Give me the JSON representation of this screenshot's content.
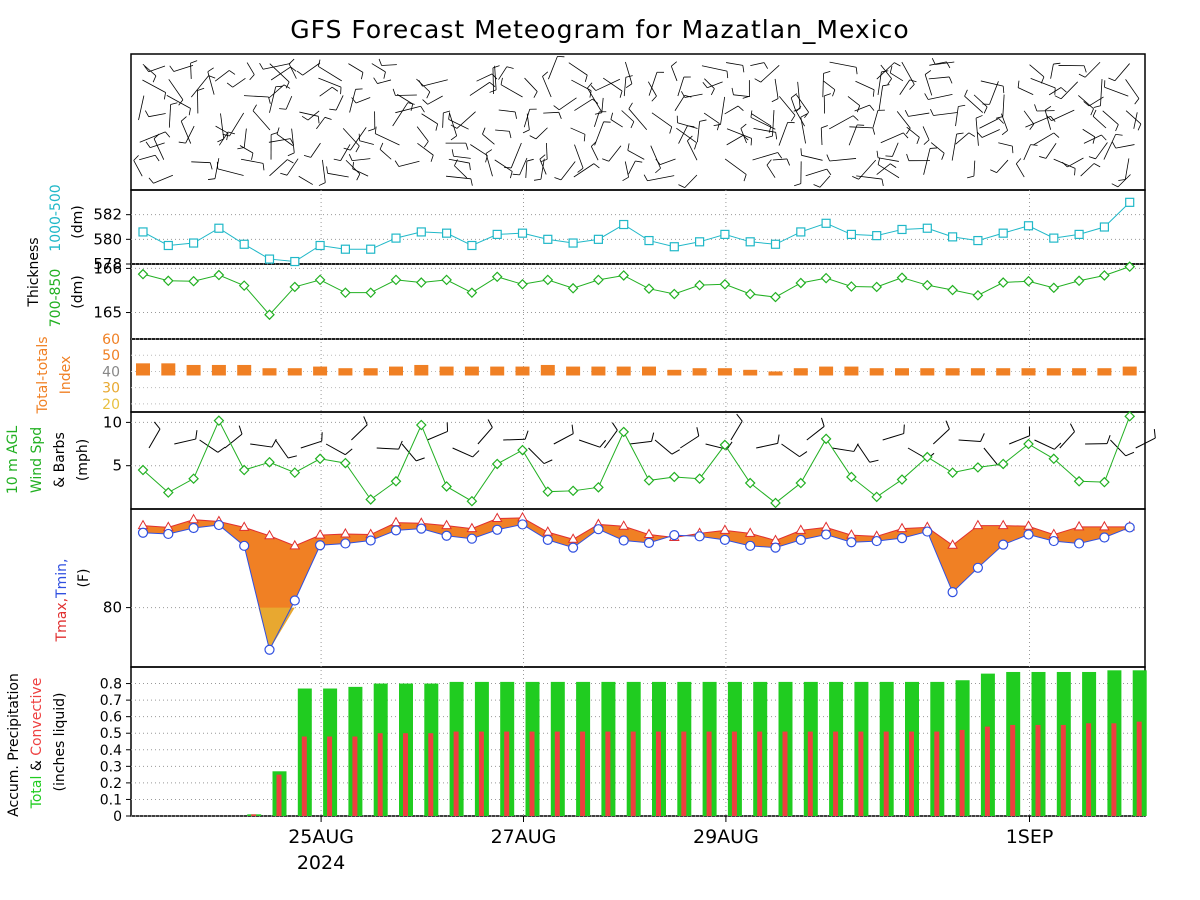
{
  "title": "GFS Forecast Meteogram for Mazatlan_Mexico",
  "colors": {
    "thickness1000": "#20b8c8",
    "thickness850": "#22b022",
    "tt_bar": "#f08024",
    "tt_label": "#f08024",
    "wind": "#22b022",
    "tmax": "#e03030",
    "tmin": "#3050e0",
    "fill_main": "#f08024",
    "fill_low": "#e8a830",
    "precip_total": "#20cc20",
    "precip_conv": "#ee4040"
  },
  "x_labels": [
    {
      "text": "25AUG",
      "step": 7
    },
    {
      "text": "27AUG",
      "step": 15
    },
    {
      "text": "29AUG",
      "step": 23
    },
    {
      "text": "1SEP",
      "step": 35
    }
  ],
  "year_label": "2024",
  "chart_data": [
    {
      "type": "line",
      "name": "thickness",
      "ylabel_lines": [
        "Thickness",
        "1000-500",
        "(dm)"
      ],
      "ylim": [
        578,
        584
      ],
      "ticks": [
        "582",
        "580",
        "578"
      ],
      "values": [
        580.6,
        579.5,
        579.7,
        580.9,
        579.6,
        578.4,
        578.2,
        579.5,
        579.2,
        579.2,
        580.1,
        580.6,
        580.5,
        579.5,
        580.4,
        580.5,
        580.0,
        579.7,
        580.0,
        581.2,
        579.9,
        579.4,
        579.8,
        580.4,
        579.8,
        579.6,
        580.6,
        581.3,
        580.4,
        580.3,
        580.8,
        580.9,
        580.2,
        579.9,
        580.5,
        581.1,
        580.1,
        580.4,
        581.0,
        583.0
      ]
    },
    {
      "type": "line",
      "name": "thickness_700_850",
      "ylabel_lines": [
        "700-850",
        "(dm)"
      ],
      "ylim": [
        164.4,
        166.1
      ],
      "ticks": [
        "166",
        "165"
      ],
      "values": [
        165.87,
        165.72,
        165.71,
        165.85,
        165.61,
        164.95,
        165.58,
        165.74,
        165.45,
        165.45,
        165.74,
        165.68,
        165.74,
        165.45,
        165.81,
        165.64,
        165.74,
        165.55,
        165.74,
        165.84,
        165.54,
        165.42,
        165.62,
        165.64,
        165.42,
        165.35,
        165.67,
        165.78,
        165.59,
        165.58,
        165.79,
        165.62,
        165.51,
        165.39,
        165.68,
        165.71,
        165.56,
        165.72,
        165.84,
        166.04
      ]
    },
    {
      "type": "bar",
      "name": "total_totals",
      "ylabel_lines": [
        "Total-totals",
        "Index"
      ],
      "ylim": [
        15,
        60
      ],
      "ticks": [
        "60",
        "50",
        "40",
        "30",
        "20"
      ],
      "values": [
        45,
        45,
        44,
        44,
        44,
        42,
        42,
        43,
        42,
        42,
        43,
        44,
        43,
        43,
        43,
        43,
        44,
        43,
        43,
        43,
        43,
        41,
        42,
        42,
        41,
        40,
        42,
        43,
        43,
        42,
        42,
        42,
        42,
        42,
        42,
        42,
        42,
        42,
        42,
        43
      ]
    },
    {
      "type": "line",
      "name": "wind_speed",
      "ylabel_lines": [
        "10 m AGL",
        "Wind Spd",
        "& Barbs",
        "(mph)"
      ],
      "ylim": [
        0,
        11.2
      ],
      "ticks": [
        "10",
        "5"
      ],
      "values": [
        4.5,
        1.9,
        3.5,
        10.2,
        4.5,
        5.4,
        4.2,
        5.8,
        5.3,
        1.1,
        3.2,
        9.7,
        2.6,
        0.9,
        5.2,
        6.8,
        2.0,
        2.1,
        2.5,
        8.9,
        3.3,
        3.7,
        3.5,
        7.4,
        3.0,
        0.7,
        3.0,
        8.1,
        3.7,
        1.4,
        3.4,
        6.0,
        4.2,
        4.8,
        5.2,
        7.5,
        5.8,
        3.2,
        3.1,
        10.7
      ]
    },
    {
      "type": "area",
      "name": "temperature",
      "ylabel_lines": [
        "Tmax,Tmin,",
        "(F)"
      ],
      "ylim": [
        70,
        96.6
      ],
      "ticks": [
        "80"
      ],
      "series": [
        {
          "name": "Tmax",
          "values": [
            93.8,
            93.5,
            94.8,
            94.5,
            93.5,
            92.1,
            90.4,
            92.2,
            92.4,
            92.3,
            94.3,
            94.2,
            93.8,
            93.3,
            95.0,
            95.1,
            92.7,
            91.5,
            94.0,
            93.7,
            92.3,
            91.8,
            92.5,
            93.0,
            92.5,
            91.3,
            93.0,
            93.5,
            92.2,
            92.0,
            93.3,
            93.5,
            90.5,
            93.8,
            93.8,
            93.7,
            92.3,
            93.6,
            93.6,
            93.6
          ]
        },
        {
          "name": "Tmin",
          "values": [
            92.6,
            92.4,
            93.4,
            93.9,
            90.4,
            72.9,
            81.2,
            90.5,
            90.8,
            91.3,
            93.0,
            93.3,
            92.1,
            91.6,
            93.1,
            94.0,
            91.4,
            90.1,
            93.2,
            91.3,
            90.9,
            92.2,
            92.0,
            91.4,
            90.4,
            90.1,
            91.4,
            92.3,
            91.0,
            91.2,
            91.7,
            92.8,
            82.6,
            86.7,
            90.6,
            92.3,
            91.2,
            90.8,
            91.8,
            93.5
          ]
        }
      ]
    },
    {
      "type": "bar",
      "name": "precipitation",
      "ylabel_lines": [
        "Accum. Precipitation",
        "Total & Convective",
        "(inches liquid)"
      ],
      "ylim": [
        0,
        0.9
      ],
      "ticks": [
        "0.8",
        "0.7",
        "0.6",
        "0.5",
        "0.4",
        "0.3",
        "0.2",
        "0.1",
        "0"
      ],
      "series": [
        {
          "name": "Total",
          "values": [
            0,
            0,
            0,
            0,
            0.01,
            0.27,
            0.77,
            0.77,
            0.78,
            0.8,
            0.8,
            0.8,
            0.81,
            0.81,
            0.81,
            0.81,
            0.81,
            0.81,
            0.81,
            0.81,
            0.81,
            0.81,
            0.81,
            0.81,
            0.81,
            0.81,
            0.81,
            0.81,
            0.81,
            0.81,
            0.81,
            0.81,
            0.82,
            0.86,
            0.87,
            0.87,
            0.87,
            0.87,
            0.88,
            0.88
          ]
        },
        {
          "name": "Convective",
          "values": [
            0,
            0,
            0,
            0,
            0.01,
            0.25,
            0.48,
            0.48,
            0.48,
            0.5,
            0.5,
            0.5,
            0.51,
            0.51,
            0.51,
            0.51,
            0.51,
            0.51,
            0.51,
            0.51,
            0.51,
            0.51,
            0.51,
            0.51,
            0.51,
            0.51,
            0.51,
            0.51,
            0.51,
            0.51,
            0.51,
            0.51,
            0.52,
            0.54,
            0.55,
            0.55,
            0.55,
            0.56,
            0.56,
            0.57
          ]
        }
      ]
    }
  ]
}
